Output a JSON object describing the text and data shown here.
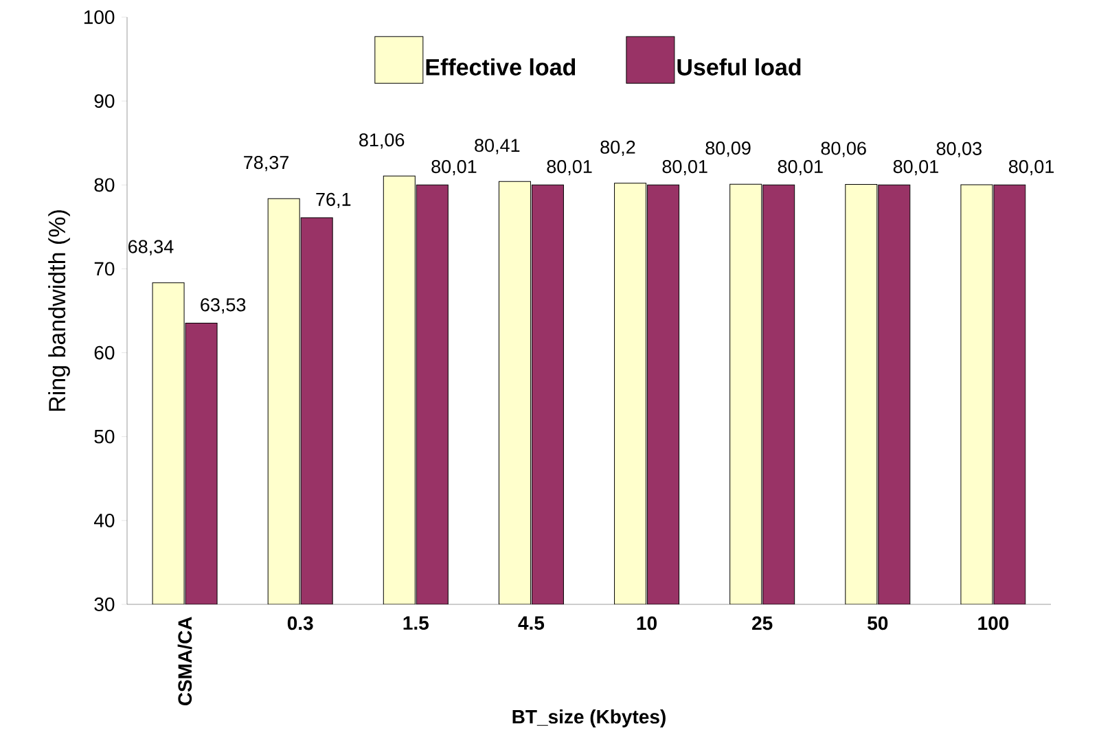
{
  "chart_data": {
    "type": "bar",
    "xlabel": "BT_size (Kbytes)",
    "ylabel": "Ring bandwidth (%)",
    "categories": [
      "CSMA/CA",
      "0.3",
      "1.5",
      "4.5",
      "10",
      "25",
      "50",
      "100"
    ],
    "series": [
      {
        "name": "Effective load",
        "color": "#ffffcc",
        "values": [
          68.34,
          78.37,
          81.06,
          80.41,
          80.2,
          80.09,
          80.06,
          80.03
        ],
        "value_labels": [
          "68,34",
          "78,37",
          "81,06",
          "80,41",
          "80,2",
          "80,09",
          "80,06",
          "80,03"
        ]
      },
      {
        "name": "Useful load",
        "color": "#993366",
        "values": [
          63.53,
          76.1,
          80.01,
          80.01,
          80.01,
          80.01,
          80.01,
          80.01
        ],
        "value_labels": [
          "63,53",
          "76,1",
          "80,01",
          "80,01",
          "80,01",
          "80,01",
          "80,01",
          "80,01"
        ]
      }
    ],
    "ylim": [
      30,
      100
    ],
    "yticks": [
      30,
      40,
      50,
      60,
      70,
      80,
      90,
      100
    ],
    "legend": "top",
    "grid": false
  }
}
